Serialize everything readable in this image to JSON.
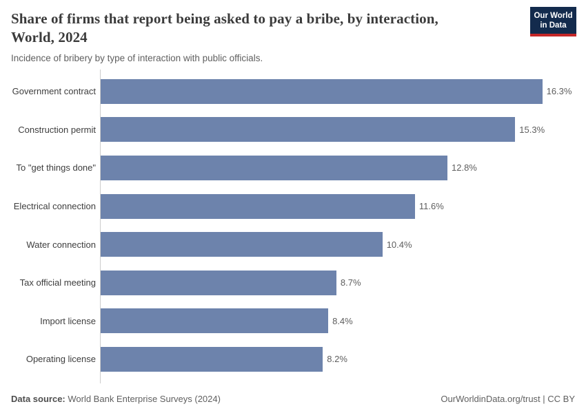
{
  "header": {
    "title": "Share of firms that report being asked to pay a bribe, by interaction,\nWorld, 2024",
    "subtitle": "Incidence of bribery by type of interaction with public officials.",
    "logo": {
      "line1": "Our World",
      "line2": "in Data"
    }
  },
  "chart_data": {
    "type": "bar",
    "orientation": "horizontal",
    "title": "Share of firms that report being asked to pay a bribe, by interaction, World, 2024",
    "subtitle": "Incidence of bribery by type of interaction with public officials.",
    "categories": [
      "Government contract",
      "Construction permit",
      "To \"get things done\"",
      "Electrical connection",
      "Water connection",
      "Tax official meeting",
      "Import license",
      "Operating license"
    ],
    "values": [
      16.3,
      15.3,
      12.8,
      11.6,
      10.4,
      8.7,
      8.4,
      8.2
    ],
    "value_labels": [
      "16.3%",
      "15.3%",
      "12.8%",
      "11.6%",
      "10.4%",
      "8.7%",
      "8.4%",
      "8.2%"
    ],
    "unit": "%",
    "xlim": [
      0,
      16.3
    ],
    "grid": false,
    "legend": "none",
    "bar_color": "#6d83ac",
    "axis_color": "#cccccc"
  },
  "footer": {
    "source_label": "Data source:",
    "source_text": " World Bank Enterprise Surveys (2024)",
    "attribution": "OurWorldinData.org/trust | CC BY"
  },
  "colors": {
    "bar": "#6d83ac",
    "logo_background": "#132b4d",
    "logo_underline": "#c52728",
    "title_text": "#3b3b3b",
    "body_text": "#5f5f5f"
  }
}
